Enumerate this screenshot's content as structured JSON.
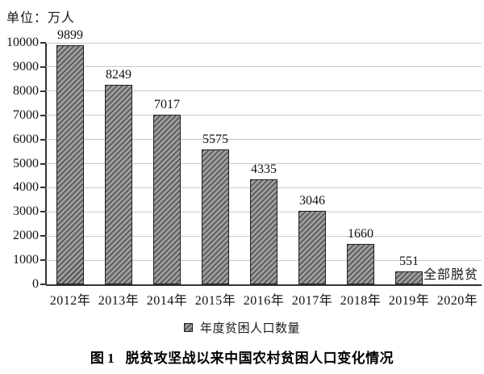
{
  "unit_label": "单位：万人",
  "chart_data": {
    "type": "bar",
    "title": "图1 脱贫攻坚战以来中国农村贫困人口变化情况",
    "categories": [
      "2012年",
      "2013年",
      "2014年",
      "2015年",
      "2016年",
      "2017年",
      "2018年",
      "2019年",
      "2020年"
    ],
    "values": [
      9899,
      8249,
      7017,
      5575,
      4335,
      3046,
      1660,
      551,
      null
    ],
    "annotation": "全部脱贫",
    "annotation_category": "2020年",
    "legend": [
      "年度贫困人口数量"
    ],
    "legend_position": "bottom",
    "unit": "万人",
    "ylim": [
      0,
      10000
    ],
    "ytick_step": 1000,
    "grid": true,
    "bar_pattern": "diagonal-hatch",
    "colors": {
      "bar_fill": "#9c9c9c",
      "bar_hatch": "#4d4d4d",
      "bar_border": "#1f1f1f",
      "gridline": "#c8c8c8",
      "axis": "#333333",
      "text": "#111111"
    }
  },
  "caption": {
    "prefix": "图 1",
    "text": "脱贫攻坚战以来中国农村贫困人口变化情况"
  }
}
